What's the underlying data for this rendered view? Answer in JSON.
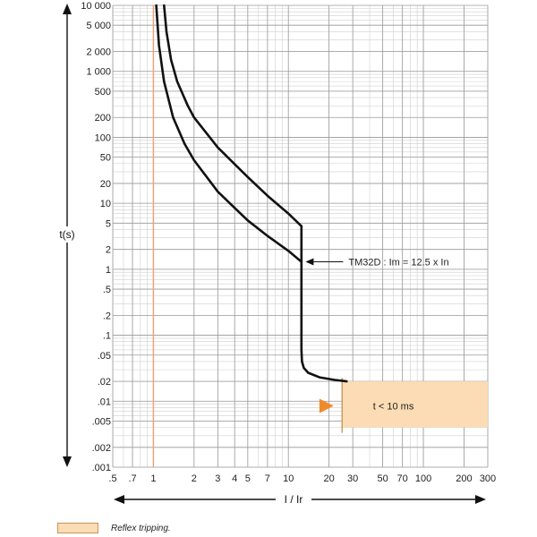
{
  "chart_data": {
    "type": "line",
    "xlabel": "I / Ir",
    "ylabel": "t(s)",
    "x_scale": "log",
    "y_scale": "log",
    "xlim": [
      0.5,
      300
    ],
    "ylim": [
      0.001,
      10000
    ],
    "grid": true,
    "x_ticks": [
      {
        "value": 0.5,
        "label": ".5"
      },
      {
        "value": 0.7,
        "label": ".7"
      },
      {
        "value": 1,
        "label": "1"
      },
      {
        "value": 2,
        "label": "2"
      },
      {
        "value": 3,
        "label": "3"
      },
      {
        "value": 4,
        "label": "4"
      },
      {
        "value": 5,
        "label": "5"
      },
      {
        "value": 7,
        "label": "7"
      },
      {
        "value": 10,
        "label": "10"
      },
      {
        "value": 20,
        "label": "20"
      },
      {
        "value": 30,
        "label": "30"
      },
      {
        "value": 50,
        "label": "50"
      },
      {
        "value": 70,
        "label": "70"
      },
      {
        "value": 100,
        "label": "100"
      },
      {
        "value": 200,
        "label": "200"
      },
      {
        "value": 300,
        "label": "300"
      }
    ],
    "y_ticks": [
      {
        "value": 10000,
        "label": "10 000"
      },
      {
        "value": 5000,
        "label": "5 000"
      },
      {
        "value": 2000,
        "label": "2 000"
      },
      {
        "value": 1000,
        "label": "1 000"
      },
      {
        "value": 500,
        "label": "500"
      },
      {
        "value": 200,
        "label": "200"
      },
      {
        "value": 100,
        "label": "100"
      },
      {
        "value": 50,
        "label": "50"
      },
      {
        "value": 20,
        "label": "20"
      },
      {
        "value": 10,
        "label": "10"
      },
      {
        "value": 5,
        "label": "5"
      },
      {
        "value": 2,
        "label": "2"
      },
      {
        "value": 1,
        "label": "1"
      },
      {
        "value": 0.5,
        "label": ".5"
      },
      {
        "value": 0.2,
        "label": ".2"
      },
      {
        "value": 0.1,
        "label": ".1"
      },
      {
        "value": 0.05,
        "label": ".05"
      },
      {
        "value": 0.02,
        "label": ".02"
      },
      {
        "value": 0.01,
        "label": ".01"
      },
      {
        "value": 0.005,
        "label": ".005"
      },
      {
        "value": 0.002,
        "label": ".002"
      },
      {
        "value": 0.001,
        "label": ".001"
      }
    ],
    "series": [
      {
        "color": "#111111",
        "x": [
          1.05,
          1.1,
          1.2,
          1.4,
          1.7,
          2.0,
          3.0,
          5.0,
          7.0,
          10.0,
          12.5
        ],
        "y": [
          10000,
          2500,
          700,
          200,
          80,
          45,
          15,
          5.5,
          3.2,
          1.9,
          1.3
        ]
      },
      {
        "color": "#111111",
        "x": [
          1.2,
          1.25,
          1.35,
          1.5,
          1.8,
          2.0,
          3.0,
          5.0,
          7.0,
          10.0,
          12.5
        ],
        "y": [
          10000,
          4000,
          1500,
          700,
          300,
          200,
          70,
          25,
          13,
          7,
          4.5
        ]
      },
      {
        "color": "#111111",
        "x": [
          12.5,
          12.5,
          12.6,
          13.0,
          14.0,
          17.0,
          22.0,
          27.0
        ],
        "y": [
          4.5,
          0.06,
          0.04,
          0.032,
          0.027,
          0.023,
          0.021,
          0.02
        ]
      }
    ],
    "reference_line": {
      "x": 1,
      "color": "#f0a070"
    },
    "reflex_region": {
      "x_start": 25,
      "x_end": 300,
      "y_low": 0.004,
      "y_high": 0.02,
      "color": "#fbdcb4",
      "edge": "#c8955a"
    },
    "reflex_marker": {
      "x": 22,
      "y": 0.0085,
      "color": "#f08a2a"
    },
    "annotations": [
      {
        "id": "tm32d",
        "text": "TM32D : Im = 12.5 x In",
        "x": 13,
        "y": 1.3,
        "arrow": true
      },
      {
        "id": "t10ms",
        "text": "t < 10 ms",
        "x": 60,
        "y": 0.0085
      }
    ]
  },
  "legend": {
    "color": "#fbdcb4",
    "label": "Reflex tripping."
  }
}
